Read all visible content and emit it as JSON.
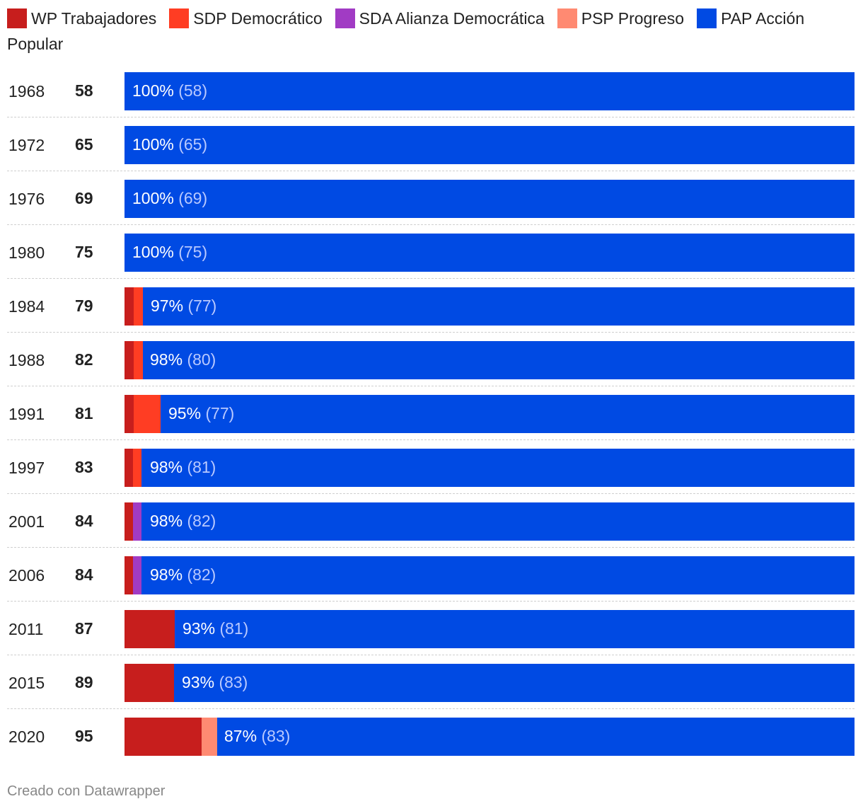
{
  "chart_data": {
    "type": "bar",
    "stacked": true,
    "orientation": "horizontal",
    "normalized_percent": true,
    "legend": {
      "placement": "top",
      "items": [
        {
          "key": "wp",
          "label": "WP Trabajadores",
          "color": "#c71e1d"
        },
        {
          "key": "sdp",
          "label": "SDP Democrático",
          "color": "#ff3d23"
        },
        {
          "key": "sda",
          "label": "SDA Alianza Democrática",
          "color": "#a13bc4"
        },
        {
          "key": "psp",
          "label": "PSP Progreso",
          "color": "#ff8a72"
        },
        {
          "key": "pap",
          "label": "PAP Acción Popular",
          "color": "#004ae3"
        }
      ]
    },
    "rows": [
      {
        "year": "1968",
        "total": "58",
        "seats": {
          "wp": 0,
          "sdp": 0,
          "sda": 0,
          "psp": 0,
          "pap": 58
        },
        "label_pct": "100%",
        "label_seats": "(58)"
      },
      {
        "year": "1972",
        "total": "65",
        "seats": {
          "wp": 0,
          "sdp": 0,
          "sda": 0,
          "psp": 0,
          "pap": 65
        },
        "label_pct": "100%",
        "label_seats": "(65)"
      },
      {
        "year": "1976",
        "total": "69",
        "seats": {
          "wp": 0,
          "sdp": 0,
          "sda": 0,
          "psp": 0,
          "pap": 69
        },
        "label_pct": "100%",
        "label_seats": "(69)"
      },
      {
        "year": "1980",
        "total": "75",
        "seats": {
          "wp": 0,
          "sdp": 0,
          "sda": 0,
          "psp": 0,
          "pap": 75
        },
        "label_pct": "100%",
        "label_seats": "(75)"
      },
      {
        "year": "1984",
        "total": "79",
        "seats": {
          "wp": 1,
          "sdp": 1,
          "sda": 0,
          "psp": 0,
          "pap": 77
        },
        "label_pct": "97%",
        "label_seats": "(77)"
      },
      {
        "year": "1988",
        "total": "82",
        "seats": {
          "wp": 1,
          "sdp": 1,
          "sda": 0,
          "psp": 0,
          "pap": 80
        },
        "label_pct": "98%",
        "label_seats": "(80)"
      },
      {
        "year": "1991",
        "total": "81",
        "seats": {
          "wp": 1,
          "sdp": 3,
          "sda": 0,
          "psp": 0,
          "pap": 77
        },
        "label_pct": "95%",
        "label_seats": "(77)"
      },
      {
        "year": "1997",
        "total": "83",
        "seats": {
          "wp": 1,
          "sdp": 1,
          "sda": 0,
          "psp": 0,
          "pap": 81
        },
        "label_pct": "98%",
        "label_seats": "(81)"
      },
      {
        "year": "2001",
        "total": "84",
        "seats": {
          "wp": 1,
          "sdp": 0,
          "sda": 1,
          "psp": 0,
          "pap": 82
        },
        "label_pct": "98%",
        "label_seats": "(82)"
      },
      {
        "year": "2006",
        "total": "84",
        "seats": {
          "wp": 1,
          "sdp": 0,
          "sda": 1,
          "psp": 0,
          "pap": 82
        },
        "label_pct": "98%",
        "label_seats": "(82)"
      },
      {
        "year": "2011",
        "total": "87",
        "seats": {
          "wp": 6,
          "sdp": 0,
          "sda": 0,
          "psp": 0,
          "pap": 81
        },
        "label_pct": "93%",
        "label_seats": "(81)"
      },
      {
        "year": "2015",
        "total": "89",
        "seats": {
          "wp": 6,
          "sdp": 0,
          "sda": 0,
          "psp": 0,
          "pap": 83
        },
        "label_pct": "93%",
        "label_seats": "(83)"
      },
      {
        "year": "2020",
        "total": "95",
        "seats": {
          "wp": 10,
          "sdp": 0,
          "sda": 0,
          "psp": 2,
          "pap": 83
        },
        "label_pct": "87%",
        "label_seats": "(83)"
      }
    ]
  },
  "footer": {
    "credit": "Creado con Datawrapper"
  }
}
